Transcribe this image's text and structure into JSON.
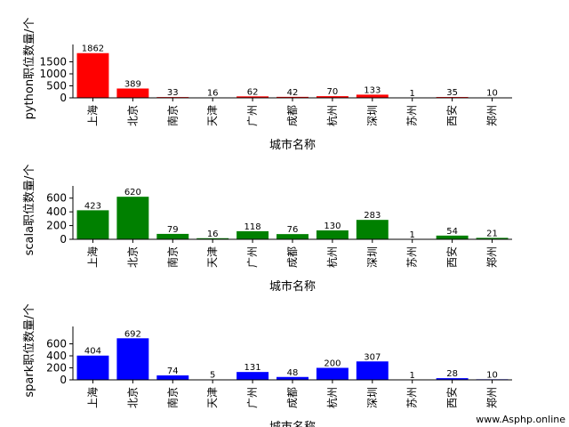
{
  "chart_data": [
    {
      "type": "bar",
      "categories": [
        "上海",
        "北京",
        "南京",
        "天津",
        "广州",
        "成都",
        "杭州",
        "深圳",
        "苏州",
        "西安",
        "郑州"
      ],
      "values": [
        1862,
        389,
        33,
        16,
        62,
        42,
        70,
        133,
        1,
        35,
        10
      ],
      "ylabel": "python职位数量/个",
      "xlabel": "城市名称",
      "ylim": [
        0,
        2000
      ],
      "yticks": [
        0,
        500,
        1000,
        1500
      ],
      "color": "#ff0000"
    },
    {
      "type": "bar",
      "categories": [
        "上海",
        "北京",
        "南京",
        "天津",
        "广州",
        "成都",
        "杭州",
        "深圳",
        "苏州",
        "西安",
        "郑州"
      ],
      "values": [
        423,
        620,
        79,
        16,
        118,
        76,
        130,
        283,
        1,
        54,
        21
      ],
      "ylabel": "scala职位数量/个",
      "xlabel": "城市名称",
      "ylim": [
        0,
        700
      ],
      "yticks": [
        0,
        200,
        400,
        600
      ],
      "color": "#008000"
    },
    {
      "type": "bar",
      "categories": [
        "上海",
        "北京",
        "南京",
        "天津",
        "广州",
        "成都",
        "杭州",
        "深圳",
        "苏州",
        "西安",
        "郑州"
      ],
      "values": [
        404,
        692,
        74,
        5,
        131,
        48,
        200,
        307,
        1,
        28,
        10
      ],
      "ylabel": "spark职位数量/个",
      "xlabel": "城市名称",
      "ylim": [
        0,
        800
      ],
      "yticks": [
        0,
        200,
        400,
        600
      ],
      "color": "#0000ff"
    }
  ],
  "watermark": "www.Asphp.online"
}
